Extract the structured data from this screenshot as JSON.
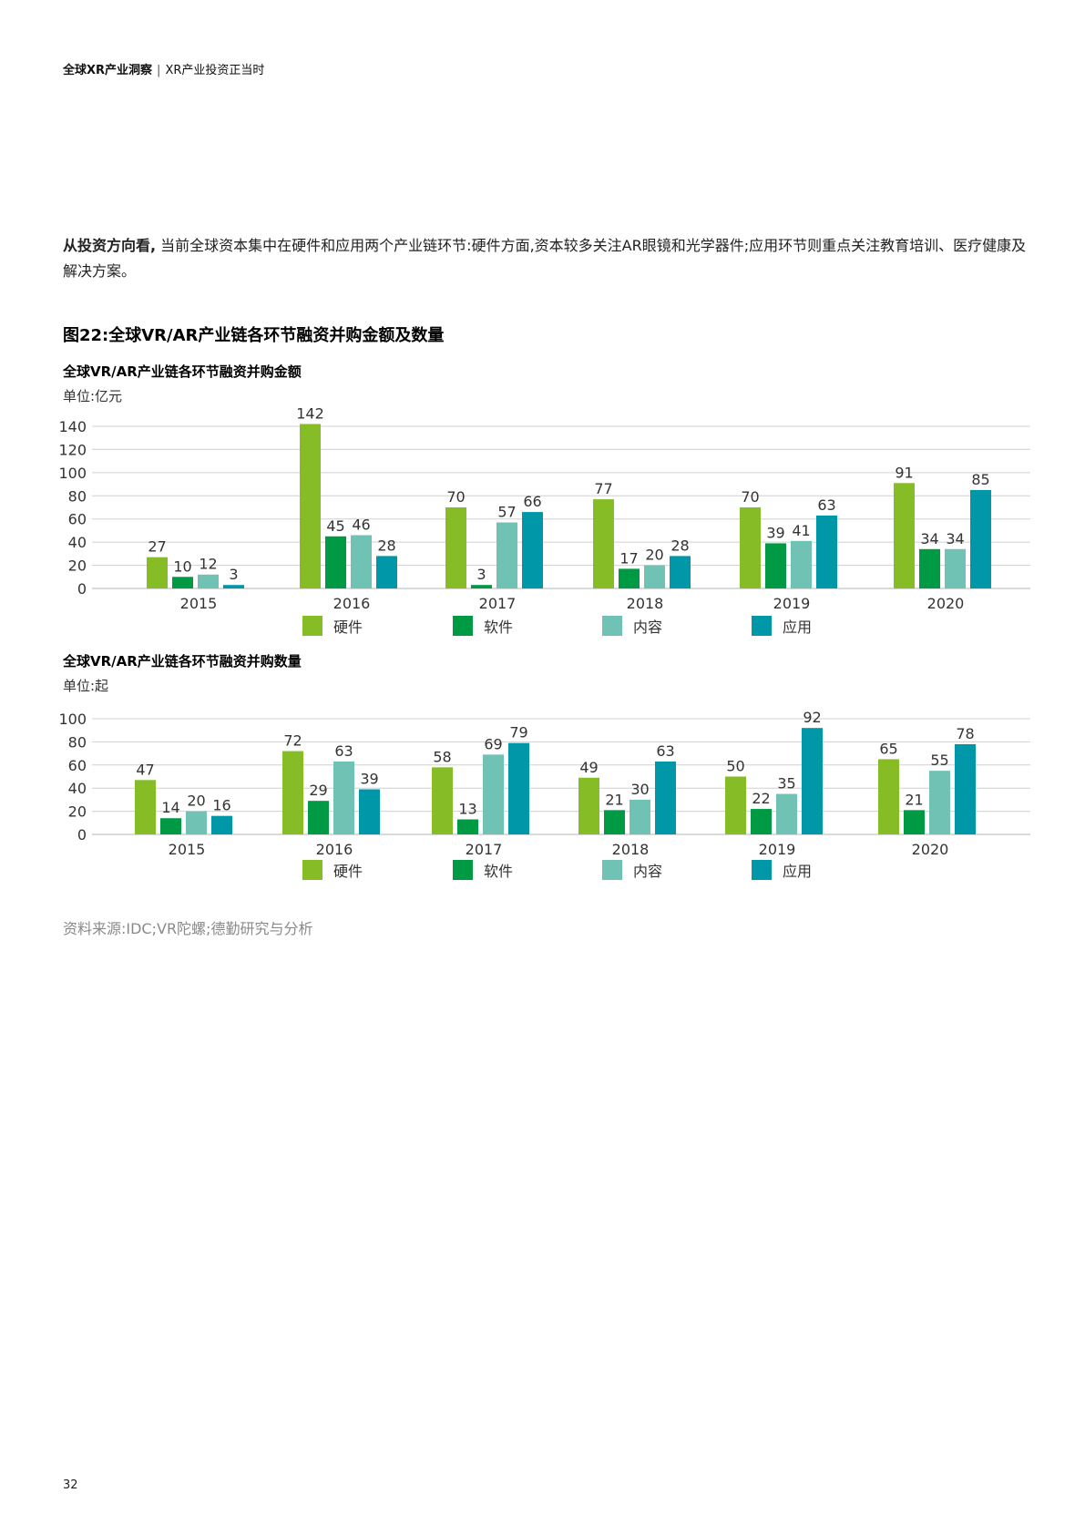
{
  "header": {
    "title": "全球XR产业洞察",
    "separator": "|",
    "subtitle": "XR产业投资正当时"
  },
  "intro": {
    "lead": "从投资方向看,",
    "text": " 当前全球资本集中在硬件和应用两个产业链环节:硬件方面,资本较多关注AR眼镜和光学器件;应用环节则重点关注教育培训、医疗健康及解决方案。"
  },
  "figure_title": "图22:全球VR/AR产业链各环节融资并购金额及数量",
  "source": "资料来源:IDC;VR陀螺;德勤研究与分析",
  "page_number": "32",
  "colors": {
    "hardware": "#86bc25",
    "software": "#009a44",
    "content": "#6fc2b4",
    "application": "#0097a9",
    "grid": "#d0d0d0",
    "axis_text": "#333333"
  },
  "chart_data": [
    {
      "type": "bar",
      "title": "全球VR/AR产业链各环节融资并购金额",
      "unit": "单位:亿元",
      "categories": [
        "2015",
        "2016",
        "2017",
        "2018",
        "2019",
        "2020"
      ],
      "series": [
        {
          "name": "硬件",
          "color": "#86bc25",
          "values": [
            27,
            142,
            70,
            77,
            70,
            91
          ]
        },
        {
          "name": "软件",
          "color": "#009a44",
          "values": [
            10,
            45,
            3,
            17,
            39,
            34
          ]
        },
        {
          "name": "内容",
          "color": "#6fc2b4",
          "values": [
            12,
            46,
            57,
            20,
            41,
            34
          ]
        },
        {
          "name": "应用",
          "color": "#0097a9",
          "values": [
            3,
            28,
            66,
            28,
            63,
            85
          ]
        }
      ],
      "yticks": [
        0,
        20,
        40,
        60,
        80,
        100,
        120,
        140
      ],
      "ylim": [
        0,
        140
      ],
      "xlabel": "",
      "ylabel": "",
      "legend": "bottom",
      "grid": true
    },
    {
      "type": "bar",
      "title": "全球VR/AR产业链各环节融资并购数量",
      "unit": "单位:起",
      "categories": [
        "2015",
        "2016",
        "2017",
        "2018",
        "2019",
        "2020"
      ],
      "series": [
        {
          "name": "硬件",
          "color": "#86bc25",
          "values": [
            47,
            72,
            58,
            49,
            50,
            65
          ]
        },
        {
          "name": "软件",
          "color": "#009a44",
          "values": [
            14,
            29,
            13,
            21,
            22,
            21
          ]
        },
        {
          "name": "内容",
          "color": "#6fc2b4",
          "values": [
            20,
            63,
            69,
            30,
            35,
            55
          ]
        },
        {
          "name": "应用",
          "color": "#0097a9",
          "values": [
            16,
            39,
            79,
            63,
            92,
            78
          ]
        }
      ],
      "yticks": [
        0,
        20,
        40,
        60,
        80,
        100
      ],
      "ylim": [
        0,
        100
      ],
      "xlabel": "",
      "ylabel": "",
      "legend": "bottom",
      "grid": true
    }
  ]
}
